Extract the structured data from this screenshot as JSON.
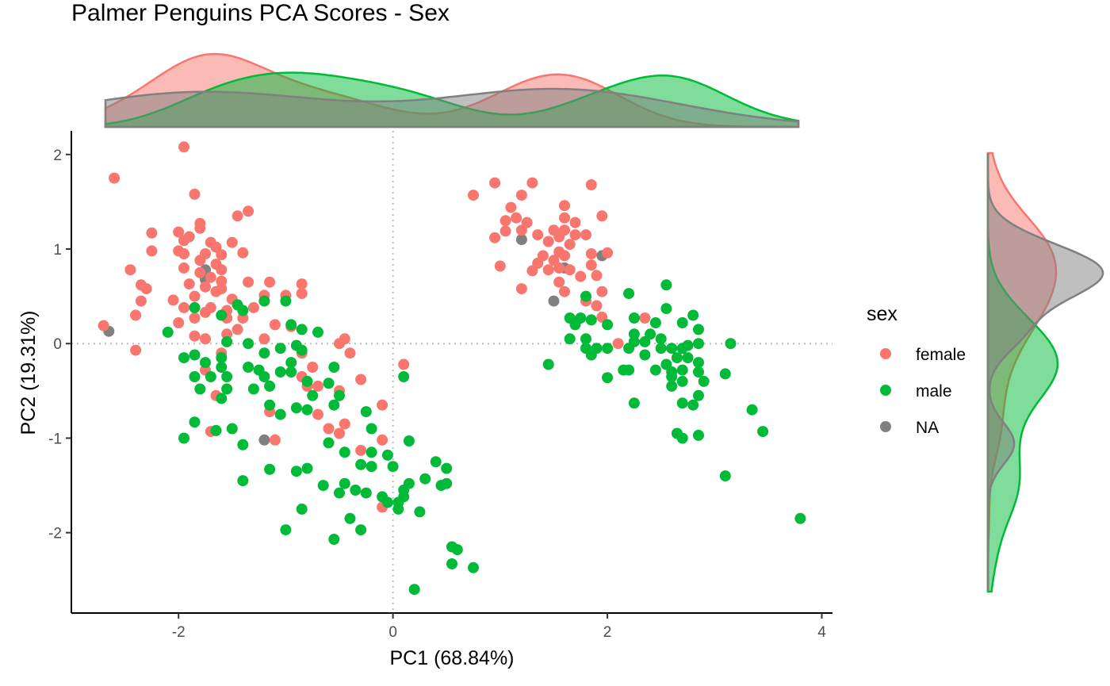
{
  "chart_data": {
    "type": "scatter",
    "title": "Palmer Penguins PCA Scores - Sex",
    "xlabel": "PC1 (68.84%)",
    "ylabel": "PC2 (19.31%)",
    "xlim": [
      -3.0,
      4.1
    ],
    "ylim": [
      -2.85,
      2.25
    ],
    "xticks": [
      -2,
      0,
      2,
      4
    ],
    "yticks": [
      2,
      1,
      0,
      -1,
      -2
    ],
    "xtick_labels": [
      "-2",
      "0",
      "2",
      "4"
    ],
    "ytick_labels": [
      "2",
      "1",
      "0",
      "-1",
      "-2"
    ],
    "reference_lines": {
      "x": 0,
      "y": 0,
      "style": "dotted"
    },
    "grid": false,
    "legend": {
      "title": "sex",
      "position": "right"
    },
    "marginal_density": {
      "top": "PC1",
      "right": "PC2"
    },
    "series": [
      {
        "name": "female",
        "color": "#F8766D",
        "points": [
          [
            -2.6,
            1.75
          ],
          [
            -1.95,
            2.08
          ],
          [
            -1.85,
            1.58
          ],
          [
            -1.35,
            1.4
          ],
          [
            -1.45,
            1.35
          ],
          [
            -1.8,
            1.27
          ],
          [
            -1.8,
            1.22
          ],
          [
            -2.0,
            1.18
          ],
          [
            -2.25,
            1.17
          ],
          [
            -1.9,
            1.13
          ],
          [
            -1.95,
            1.09
          ],
          [
            -1.7,
            1.07
          ],
          [
            -1.5,
            1.07
          ],
          [
            -1.65,
            1.02
          ],
          [
            -2.25,
            0.98
          ],
          [
            -2.0,
            0.98
          ],
          [
            -1.95,
            0.95
          ],
          [
            -1.75,
            0.95
          ],
          [
            -1.4,
            0.96
          ],
          [
            -1.6,
            0.94
          ],
          [
            -1.8,
            0.88
          ],
          [
            -1.65,
            0.84
          ],
          [
            -2.45,
            0.78
          ],
          [
            -1.95,
            0.8
          ],
          [
            -1.8,
            0.75
          ],
          [
            -1.6,
            0.78
          ],
          [
            -1.7,
            0.7
          ],
          [
            -1.35,
            0.65
          ],
          [
            -2.35,
            0.62
          ],
          [
            -2.3,
            0.58
          ],
          [
            -1.9,
            0.63
          ],
          [
            -1.75,
            0.6
          ],
          [
            -1.6,
            0.66
          ],
          [
            -1.6,
            0.58
          ],
          [
            -1.15,
            0.65
          ],
          [
            -0.85,
            0.63
          ],
          [
            -2.05,
            0.46
          ],
          [
            -1.85,
            0.5
          ],
          [
            -1.65,
            0.55
          ],
          [
            -1.5,
            0.47
          ],
          [
            -1.2,
            0.51
          ],
          [
            -1.0,
            0.51
          ],
          [
            -0.85,
            0.53
          ],
          [
            -2.35,
            0.45
          ],
          [
            -1.95,
            0.38
          ],
          [
            -1.7,
            0.38
          ],
          [
            -1.55,
            0.35
          ],
          [
            -1.3,
            0.38
          ],
          [
            -1.55,
            0.27
          ],
          [
            -2.4,
            0.3
          ],
          [
            -1.75,
            0.33
          ],
          [
            -1.4,
            0.27
          ],
          [
            -2.0,
            0.22
          ],
          [
            -1.85,
            0.27
          ],
          [
            -1.45,
            0.15
          ],
          [
            -1.1,
            0.2
          ],
          [
            -0.95,
            0.18
          ],
          [
            -2.7,
            0.19
          ],
          [
            -1.85,
            0.08
          ],
          [
            -1.75,
            0.05
          ],
          [
            -1.55,
            0.1
          ],
          [
            -1.6,
            -0.1
          ],
          [
            -1.2,
            0.05
          ],
          [
            -0.5,
            0.0
          ],
          [
            -0.45,
            0.05
          ],
          [
            -2.4,
            -0.07
          ],
          [
            -0.85,
            -0.1
          ],
          [
            -0.4,
            -0.1
          ],
          [
            -1.75,
            -0.28
          ],
          [
            -0.75,
            -0.25
          ],
          [
            -0.85,
            -0.35
          ],
          [
            -0.8,
            -0.45
          ],
          [
            -0.7,
            -0.45
          ],
          [
            -0.3,
            -0.38
          ],
          [
            -1.65,
            -0.55
          ],
          [
            -0.5,
            -0.5
          ],
          [
            -1.15,
            -0.72
          ],
          [
            -0.7,
            -0.75
          ],
          [
            0.1,
            -0.22
          ],
          [
            -0.1,
            -0.65
          ],
          [
            -0.6,
            -0.9
          ],
          [
            -0.45,
            -0.85
          ],
          [
            -0.5,
            -0.95
          ],
          [
            -1.7,
            -0.93
          ],
          [
            -1.1,
            -1.02
          ],
          [
            -0.3,
            -1.13
          ],
          [
            -0.1,
            -1.02
          ],
          [
            -0.1,
            -1.73
          ],
          [
            0.75,
            1.57
          ],
          [
            0.95,
            1.7
          ],
          [
            1.3,
            1.7
          ],
          [
            1.2,
            1.57
          ],
          [
            1.1,
            1.44
          ],
          [
            1.6,
            1.46
          ],
          [
            1.85,
            1.68
          ],
          [
            1.6,
            1.33
          ],
          [
            1.95,
            1.35
          ],
          [
            1.05,
            1.3
          ],
          [
            1.15,
            1.33
          ],
          [
            1.25,
            1.28
          ],
          [
            1.7,
            1.28
          ],
          [
            1.05,
            1.19
          ],
          [
            1.2,
            1.2
          ],
          [
            1.5,
            1.2
          ],
          [
            1.6,
            1.2
          ],
          [
            1.55,
            1.13
          ],
          [
            1.7,
            1.15
          ],
          [
            1.8,
            1.15
          ],
          [
            0.95,
            1.12
          ],
          [
            1.35,
            1.15
          ],
          [
            1.45,
            1.08
          ],
          [
            1.65,
            1.05
          ],
          [
            1.55,
            0.97
          ],
          [
            1.85,
            0.95
          ],
          [
            2.0,
            0.96
          ],
          [
            1.4,
            0.93
          ],
          [
            1.6,
            0.93
          ],
          [
            1.35,
            0.85
          ],
          [
            1.5,
            0.88
          ],
          [
            1.0,
            0.82
          ],
          [
            1.3,
            0.77
          ],
          [
            1.45,
            0.78
          ],
          [
            1.55,
            0.8
          ],
          [
            1.85,
            0.83
          ],
          [
            1.65,
            0.78
          ],
          [
            1.9,
            0.72
          ],
          [
            1.2,
            0.58
          ],
          [
            1.55,
            0.65
          ],
          [
            1.75,
            0.71
          ],
          [
            1.6,
            0.55
          ],
          [
            1.8,
            0.45
          ],
          [
            1.95,
            0.55
          ],
          [
            1.9,
            0.4
          ],
          [
            1.95,
            0.28
          ],
          [
            2.1,
            0.0
          ],
          [
            2.35,
            0.27
          ]
        ]
      },
      {
        "name": "male",
        "color": "#00BA38",
        "points": [
          [
            -1.2,
            0.45
          ],
          [
            -1.0,
            0.45
          ],
          [
            -1.85,
            0.38
          ],
          [
            -1.45,
            0.41
          ],
          [
            -1.6,
            0.3
          ],
          [
            -1.4,
            0.35
          ],
          [
            -0.95,
            0.2
          ],
          [
            -0.85,
            0.15
          ],
          [
            -2.1,
            0.12
          ],
          [
            -0.7,
            0.12
          ],
          [
            -1.55,
            0.02
          ],
          [
            -1.35,
            0.0
          ],
          [
            -0.9,
            -0.02
          ],
          [
            -1.95,
            -0.15
          ],
          [
            -1.85,
            -0.12
          ],
          [
            -1.6,
            -0.15
          ],
          [
            -1.2,
            -0.1
          ],
          [
            -1.05,
            -0.05
          ],
          [
            -0.85,
            -0.07
          ],
          [
            -0.95,
            -0.2
          ],
          [
            -1.75,
            -0.2
          ],
          [
            -1.6,
            -0.25
          ],
          [
            -1.35,
            -0.25
          ],
          [
            -1.25,
            -0.28
          ],
          [
            -1.05,
            -0.3
          ],
          [
            -0.95,
            -0.3
          ],
          [
            -1.85,
            -0.35
          ],
          [
            -1.7,
            -0.35
          ],
          [
            -1.55,
            -0.35
          ],
          [
            -1.2,
            -0.35
          ],
          [
            -0.55,
            -0.25
          ],
          [
            0.1,
            -0.35
          ],
          [
            -1.15,
            -0.45
          ],
          [
            -0.8,
            -0.4
          ],
          [
            -0.6,
            -0.42
          ],
          [
            -1.8,
            -0.48
          ],
          [
            -1.55,
            -0.48
          ],
          [
            -1.3,
            -0.48
          ],
          [
            -0.75,
            -0.55
          ],
          [
            -1.6,
            -0.58
          ],
          [
            -1.15,
            -0.65
          ],
          [
            -0.5,
            -0.55
          ],
          [
            -0.9,
            -0.68
          ],
          [
            -0.8,
            -0.7
          ],
          [
            -0.55,
            -0.65
          ],
          [
            -0.25,
            -0.72
          ],
          [
            -1.05,
            -0.75
          ],
          [
            -1.65,
            -0.92
          ],
          [
            -1.85,
            -0.83
          ],
          [
            -1.5,
            -0.9
          ],
          [
            -0.2,
            -0.9
          ],
          [
            -1.95,
            -1.0
          ],
          [
            -1.4,
            -1.07
          ],
          [
            -0.6,
            -1.05
          ],
          [
            -0.45,
            -1.15
          ],
          [
            -0.2,
            -1.15
          ],
          [
            0.15,
            -1.03
          ],
          [
            -0.05,
            -1.18
          ],
          [
            -1.15,
            -1.33
          ],
          [
            -0.9,
            -1.35
          ],
          [
            -0.8,
            -1.32
          ],
          [
            -0.3,
            -1.28
          ],
          [
            -0.2,
            -1.3
          ],
          [
            0.0,
            -1.3
          ],
          [
            0.4,
            -1.25
          ],
          [
            0.5,
            -1.32
          ],
          [
            -1.4,
            -1.45
          ],
          [
            -0.65,
            -1.5
          ],
          [
            -0.45,
            -1.48
          ],
          [
            -0.35,
            -1.55
          ],
          [
            -0.5,
            -1.58
          ],
          [
            -0.25,
            -1.58
          ],
          [
            -0.1,
            -1.62
          ],
          [
            0.15,
            -1.48
          ],
          [
            0.3,
            -1.43
          ],
          [
            0.45,
            -1.5
          ],
          [
            0.5,
            -1.48
          ],
          [
            0.1,
            -1.55
          ],
          [
            0.1,
            -1.62
          ],
          [
            -0.05,
            -1.68
          ],
          [
            0.05,
            -1.68
          ],
          [
            0.25,
            -1.78
          ],
          [
            -0.85,
            -1.75
          ],
          [
            -0.4,
            -1.85
          ],
          [
            0.05,
            -1.75
          ],
          [
            -1.0,
            -1.97
          ],
          [
            -0.3,
            -1.97
          ],
          [
            -0.55,
            -2.07
          ],
          [
            0.55,
            -2.15
          ],
          [
            0.6,
            -2.18
          ],
          [
            0.55,
            -2.33
          ],
          [
            0.75,
            -2.37
          ],
          [
            0.2,
            -2.6
          ],
          [
            2.55,
            0.62
          ],
          [
            1.8,
            0.5
          ],
          [
            2.2,
            0.53
          ],
          [
            2.55,
            0.37
          ],
          [
            2.8,
            0.3
          ],
          [
            1.65,
            0.27
          ],
          [
            1.75,
            0.27
          ],
          [
            1.85,
            0.25
          ],
          [
            2.25,
            0.27
          ],
          [
            2.45,
            0.22
          ],
          [
            2.7,
            0.22
          ],
          [
            1.7,
            0.2
          ],
          [
            2.0,
            0.2
          ],
          [
            2.85,
            0.15
          ],
          [
            1.65,
            0.05
          ],
          [
            1.8,
            0.05
          ],
          [
            2.25,
            0.1
          ],
          [
            2.4,
            0.1
          ],
          [
            2.5,
            0.05
          ],
          [
            2.25,
            0.02
          ],
          [
            2.35,
            0.02
          ],
          [
            2.75,
            -0.02
          ],
          [
            2.85,
            0.0
          ],
          [
            3.15,
            0.0
          ],
          [
            1.8,
            -0.05
          ],
          [
            1.9,
            -0.05
          ],
          [
            2.0,
            -0.05
          ],
          [
            2.2,
            -0.05
          ],
          [
            2.5,
            -0.05
          ],
          [
            2.6,
            -0.05
          ],
          [
            2.7,
            -0.05
          ],
          [
            1.85,
            -0.12
          ],
          [
            2.35,
            -0.12
          ],
          [
            2.65,
            -0.15
          ],
          [
            2.75,
            -0.15
          ],
          [
            2.85,
            -0.2
          ],
          [
            2.55,
            -0.22
          ],
          [
            2.7,
            -0.28
          ],
          [
            1.45,
            -0.22
          ],
          [
            2.15,
            -0.28
          ],
          [
            2.2,
            -0.28
          ],
          [
            2.45,
            -0.28
          ],
          [
            2.6,
            -0.3
          ],
          [
            2.85,
            -0.3
          ],
          [
            3.1,
            -0.32
          ],
          [
            2.6,
            -0.35
          ],
          [
            2.7,
            -0.4
          ],
          [
            2.9,
            -0.4
          ],
          [
            2.0,
            -0.36
          ],
          [
            2.6,
            -0.45
          ],
          [
            2.85,
            -0.55
          ],
          [
            2.25,
            -0.63
          ],
          [
            2.7,
            -0.63
          ],
          [
            2.8,
            -0.65
          ],
          [
            3.35,
            -0.7
          ],
          [
            2.65,
            -0.95
          ],
          [
            2.7,
            -1.0
          ],
          [
            2.85,
            -0.97
          ],
          [
            3.45,
            -0.93
          ],
          [
            3.1,
            -1.4
          ],
          [
            3.8,
            -1.85
          ]
        ]
      },
      {
        "name": "NA",
        "color": "#808080",
        "points": [
          [
            -2.65,
            0.13
          ],
          [
            -1.75,
            0.78
          ],
          [
            -1.75,
            0.68
          ],
          [
            -1.2,
            -1.02
          ],
          [
            1.2,
            1.1
          ],
          [
            1.6,
            0.8
          ],
          [
            1.95,
            0.93
          ],
          [
            1.5,
            0.45
          ]
        ]
      }
    ]
  }
}
